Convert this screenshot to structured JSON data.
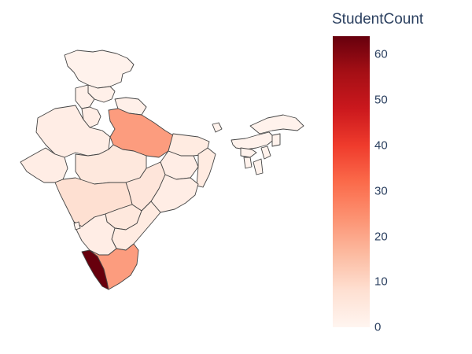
{
  "colorbar": {
    "title": "StudentCount",
    "ticks": [
      "60",
      "50",
      "40",
      "30",
      "20",
      "10",
      "0"
    ],
    "colorscale": [
      "#fff5f0",
      "#fee0d2",
      "#fcbba1",
      "#fc9272",
      "#fb6a4a",
      "#ef3b2c",
      "#cb181d",
      "#a50f15",
      "#67000d"
    ]
  },
  "chart_data": {
    "type": "choropleth",
    "colorscale_name": "Reds",
    "range": [
      0,
      64
    ],
    "regions": [
      {
        "name": "Jammu and Kashmir",
        "value": 1
      },
      {
        "name": "Himachal Pradesh",
        "value": 2
      },
      {
        "name": "Punjab",
        "value": 2
      },
      {
        "name": "Uttarakhand",
        "value": 2
      },
      {
        "name": "Haryana",
        "value": 3
      },
      {
        "name": "Rajasthan",
        "value": 3
      },
      {
        "name": "Uttar Pradesh",
        "value": 22
      },
      {
        "name": "Bihar",
        "value": 4
      },
      {
        "name": "Gujarat",
        "value": 3
      },
      {
        "name": "Madhya Pradesh",
        "value": 5
      },
      {
        "name": "Jharkhand",
        "value": 3
      },
      {
        "name": "West Bengal",
        "value": 4
      },
      {
        "name": "Chhattisgarh",
        "value": 6
      },
      {
        "name": "Odisha",
        "value": 3
      },
      {
        "name": "Maharashtra",
        "value": 8
      },
      {
        "name": "Telangana",
        "value": 5
      },
      {
        "name": "Andhra Pradesh",
        "value": 4
      },
      {
        "name": "Karnataka",
        "value": 3
      },
      {
        "name": "Goa",
        "value": 1
      },
      {
        "name": "Kerala",
        "value": 64
      },
      {
        "name": "Tamil Nadu",
        "value": 22
      },
      {
        "name": "Sikkim",
        "value": 1
      },
      {
        "name": "Assam",
        "value": 1
      },
      {
        "name": "Arunachal Pradesh",
        "value": 1
      },
      {
        "name": "Meghalaya",
        "value": 1
      },
      {
        "name": "Tripura",
        "value": 1
      },
      {
        "name": "Mizoram",
        "value": 1
      },
      {
        "name": "Manipur",
        "value": 1
      },
      {
        "name": "Nagaland",
        "value": 1
      }
    ]
  }
}
